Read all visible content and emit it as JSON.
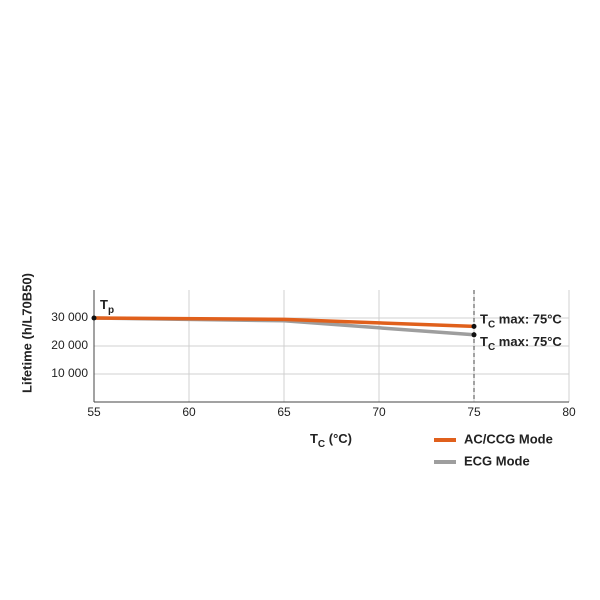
{
  "chart_data": {
    "type": "line",
    "y_label": "Lifetime (h/L70B50)",
    "x_label": {
      "main": "T",
      "sub": "C",
      "rest": " (°C)"
    },
    "x": [
      55,
      65,
      75
    ],
    "series": [
      {
        "name": "AC/CCG Mode",
        "color": "#e0601c",
        "values": [
          30000,
          29500,
          27000
        ]
      },
      {
        "name": "ECG Mode",
        "color": "#9e9e9e",
        "values": [
          30000,
          29000,
          24000
        ]
      }
    ],
    "xlim": [
      55,
      80
    ],
    "xticks": [
      55,
      60,
      65,
      70,
      75,
      80
    ],
    "ylim": [
      0,
      40000
    ],
    "yticks": [
      {
        "value": 10000,
        "label": "10 000"
      },
      {
        "value": 20000,
        "label": "20 000"
      },
      {
        "value": 30000,
        "label": "30 000"
      }
    ],
    "grid": true,
    "vline": 75,
    "start_label": {
      "main": "T",
      "sub": "p"
    },
    "end_labels": [
      {
        "main": "T",
        "sub": "C",
        "rest": " max: 75°C"
      },
      {
        "main": "T",
        "sub": "C",
        "rest": " max: 75°C"
      }
    ],
    "legend": "bottom-right"
  }
}
